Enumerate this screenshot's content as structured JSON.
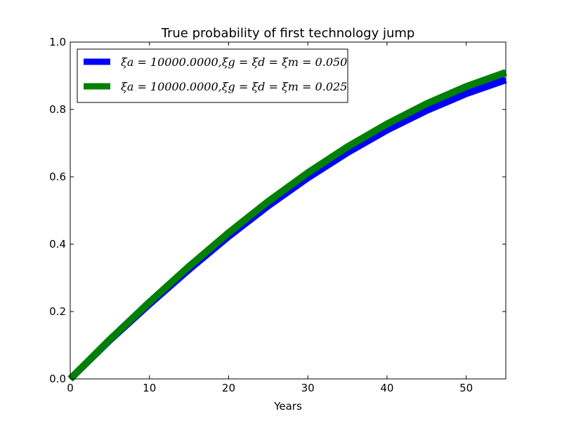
{
  "chart_data": {
    "type": "line",
    "title": "True probability of first technology jump",
    "xlabel": "Years",
    "ylabel": "",
    "xlim": [
      0,
      55
    ],
    "ylim": [
      0.0,
      1.0
    ],
    "x_ticks": [
      "0",
      "10",
      "20",
      "30",
      "40",
      "50"
    ],
    "y_ticks": [
      "0.0",
      "0.2",
      "0.4",
      "0.6",
      "0.8",
      "1.0"
    ],
    "grid": false,
    "legend_position": "top-left",
    "x": [
      0,
      5,
      10,
      15,
      20,
      25,
      30,
      35,
      40,
      45,
      50,
      55
    ],
    "series": [
      {
        "name": "ξa = 10000.0000,ξg = ξd = ξm = 0.050",
        "color": "#0000ff",
        "values": [
          0.0,
          0.115,
          0.222,
          0.325,
          0.423,
          0.514,
          0.597,
          0.672,
          0.739,
          0.797,
          0.847,
          0.888
        ]
      },
      {
        "name": "ξa = 10000.0000,ξg = ξd = ξm = 0.025",
        "color": "#008000",
        "values": [
          0.0,
          0.117,
          0.228,
          0.334,
          0.434,
          0.527,
          0.612,
          0.689,
          0.757,
          0.817,
          0.868,
          0.91
        ]
      }
    ]
  }
}
